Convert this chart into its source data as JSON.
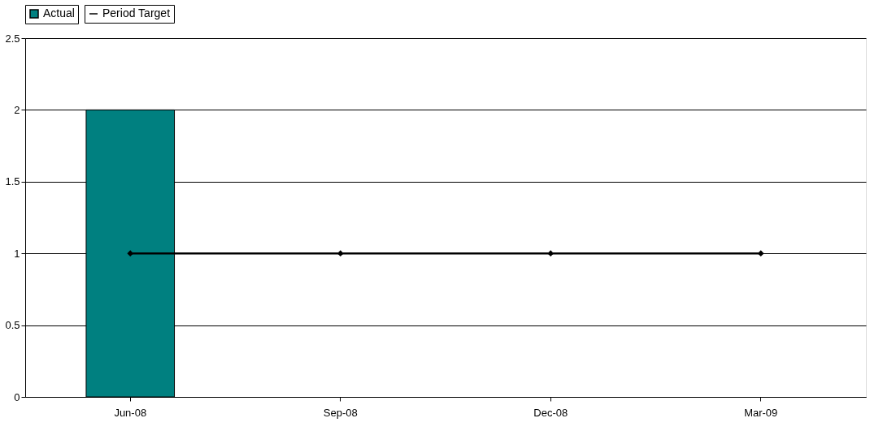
{
  "chart_data": {
    "type": "bar",
    "categories": [
      "Jun-08",
      "Sep-08",
      "Dec-08",
      "Mar-09"
    ],
    "series": [
      {
        "name": "Actual",
        "color": "#008080",
        "values": [
          2,
          null,
          null,
          null
        ]
      },
      {
        "name": "Period Target",
        "type": "line",
        "color": "#000000",
        "marker": "diamond",
        "values": [
          1,
          1,
          1,
          1
        ]
      }
    ],
    "ylim": [
      0,
      2.5
    ],
    "yticks": [
      0,
      0.5,
      1,
      1.5,
      2,
      2.5
    ],
    "grid": "y",
    "legend": "top"
  }
}
